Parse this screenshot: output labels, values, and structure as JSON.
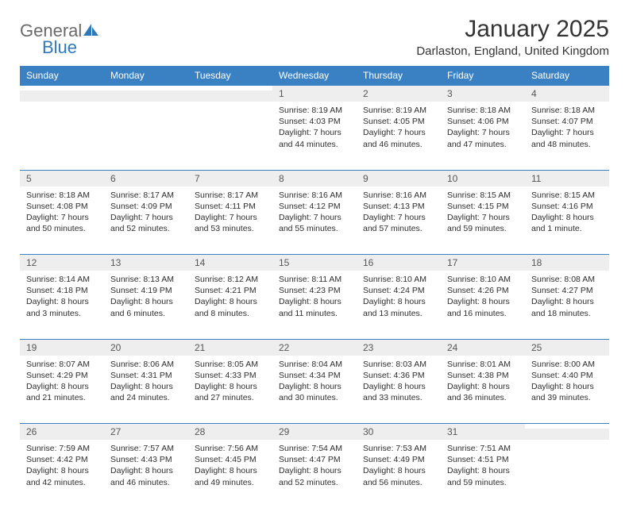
{
  "logo": {
    "general": "General",
    "blue": "Blue"
  },
  "title": "January 2025",
  "location": "Darlaston, England, United Kingdom",
  "colors": {
    "header_bg": "#3a81c4",
    "header_text": "#ffffff",
    "daynum_bg": "#eeeeee",
    "daynum_text": "#565656",
    "cell_text": "#2d2d2d",
    "border": "#3a81c4",
    "logo_gray": "#6a6a6a",
    "logo_blue": "#2f79bb"
  },
  "day_headers": [
    "Sunday",
    "Monday",
    "Tuesday",
    "Wednesday",
    "Thursday",
    "Friday",
    "Saturday"
  ],
  "weeks": [
    [
      null,
      null,
      null,
      {
        "n": "1",
        "sr": "8:19 AM",
        "ss": "4:03 PM",
        "dl": "7 hours and 44 minutes."
      },
      {
        "n": "2",
        "sr": "8:19 AM",
        "ss": "4:05 PM",
        "dl": "7 hours and 46 minutes."
      },
      {
        "n": "3",
        "sr": "8:18 AM",
        "ss": "4:06 PM",
        "dl": "7 hours and 47 minutes."
      },
      {
        "n": "4",
        "sr": "8:18 AM",
        "ss": "4:07 PM",
        "dl": "7 hours and 48 minutes."
      }
    ],
    [
      {
        "n": "5",
        "sr": "8:18 AM",
        "ss": "4:08 PM",
        "dl": "7 hours and 50 minutes."
      },
      {
        "n": "6",
        "sr": "8:17 AM",
        "ss": "4:09 PM",
        "dl": "7 hours and 52 minutes."
      },
      {
        "n": "7",
        "sr": "8:17 AM",
        "ss": "4:11 PM",
        "dl": "7 hours and 53 minutes."
      },
      {
        "n": "8",
        "sr": "8:16 AM",
        "ss": "4:12 PM",
        "dl": "7 hours and 55 minutes."
      },
      {
        "n": "9",
        "sr": "8:16 AM",
        "ss": "4:13 PM",
        "dl": "7 hours and 57 minutes."
      },
      {
        "n": "10",
        "sr": "8:15 AM",
        "ss": "4:15 PM",
        "dl": "7 hours and 59 minutes."
      },
      {
        "n": "11",
        "sr": "8:15 AM",
        "ss": "4:16 PM",
        "dl": "8 hours and 1 minute."
      }
    ],
    [
      {
        "n": "12",
        "sr": "8:14 AM",
        "ss": "4:18 PM",
        "dl": "8 hours and 3 minutes."
      },
      {
        "n": "13",
        "sr": "8:13 AM",
        "ss": "4:19 PM",
        "dl": "8 hours and 6 minutes."
      },
      {
        "n": "14",
        "sr": "8:12 AM",
        "ss": "4:21 PM",
        "dl": "8 hours and 8 minutes."
      },
      {
        "n": "15",
        "sr": "8:11 AM",
        "ss": "4:23 PM",
        "dl": "8 hours and 11 minutes."
      },
      {
        "n": "16",
        "sr": "8:10 AM",
        "ss": "4:24 PM",
        "dl": "8 hours and 13 minutes."
      },
      {
        "n": "17",
        "sr": "8:10 AM",
        "ss": "4:26 PM",
        "dl": "8 hours and 16 minutes."
      },
      {
        "n": "18",
        "sr": "8:08 AM",
        "ss": "4:27 PM",
        "dl": "8 hours and 18 minutes."
      }
    ],
    [
      {
        "n": "19",
        "sr": "8:07 AM",
        "ss": "4:29 PM",
        "dl": "8 hours and 21 minutes."
      },
      {
        "n": "20",
        "sr": "8:06 AM",
        "ss": "4:31 PM",
        "dl": "8 hours and 24 minutes."
      },
      {
        "n": "21",
        "sr": "8:05 AM",
        "ss": "4:33 PM",
        "dl": "8 hours and 27 minutes."
      },
      {
        "n": "22",
        "sr": "8:04 AM",
        "ss": "4:34 PM",
        "dl": "8 hours and 30 minutes."
      },
      {
        "n": "23",
        "sr": "8:03 AM",
        "ss": "4:36 PM",
        "dl": "8 hours and 33 minutes."
      },
      {
        "n": "24",
        "sr": "8:01 AM",
        "ss": "4:38 PM",
        "dl": "8 hours and 36 minutes."
      },
      {
        "n": "25",
        "sr": "8:00 AM",
        "ss": "4:40 PM",
        "dl": "8 hours and 39 minutes."
      }
    ],
    [
      {
        "n": "26",
        "sr": "7:59 AM",
        "ss": "4:42 PM",
        "dl": "8 hours and 42 minutes."
      },
      {
        "n": "27",
        "sr": "7:57 AM",
        "ss": "4:43 PM",
        "dl": "8 hours and 46 minutes."
      },
      {
        "n": "28",
        "sr": "7:56 AM",
        "ss": "4:45 PM",
        "dl": "8 hours and 49 minutes."
      },
      {
        "n": "29",
        "sr": "7:54 AM",
        "ss": "4:47 PM",
        "dl": "8 hours and 52 minutes."
      },
      {
        "n": "30",
        "sr": "7:53 AM",
        "ss": "4:49 PM",
        "dl": "8 hours and 56 minutes."
      },
      {
        "n": "31",
        "sr": "7:51 AM",
        "ss": "4:51 PM",
        "dl": "8 hours and 59 minutes."
      },
      null
    ]
  ],
  "labels": {
    "sunrise": "Sunrise:",
    "sunset": "Sunset:",
    "daylight": "Daylight:"
  }
}
